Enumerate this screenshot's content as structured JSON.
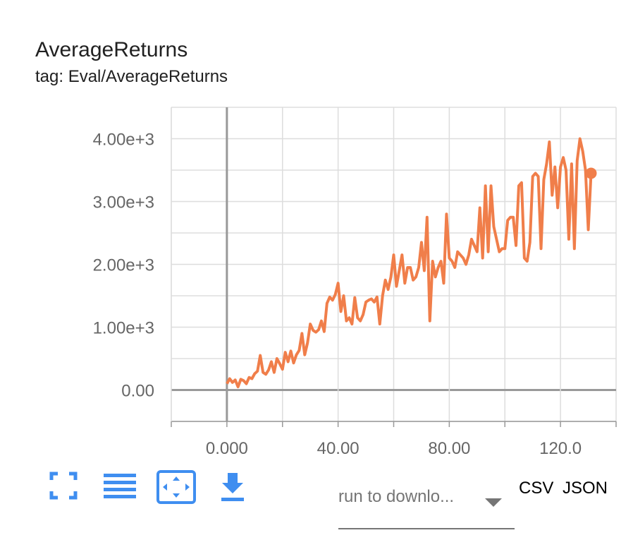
{
  "chart_data": {
    "type": "line",
    "title": "AverageReturns",
    "subtitle": "tag: Eval/AverageReturns",
    "x": [
      0,
      1,
      2,
      3,
      4,
      5,
      6,
      7,
      8,
      9,
      10,
      11,
      12,
      13,
      14,
      15,
      16,
      17,
      18,
      19,
      20,
      21,
      22,
      23,
      24,
      25,
      26,
      27,
      28,
      29,
      30,
      31,
      32,
      33,
      34,
      35,
      36,
      37,
      38,
      39,
      40,
      41,
      42,
      43,
      44,
      45,
      46,
      47,
      48,
      49,
      50,
      51,
      52,
      53,
      54,
      55,
      56,
      57,
      58,
      59,
      60,
      61,
      62,
      63,
      64,
      65,
      66,
      67,
      68,
      69,
      70,
      71,
      72,
      73,
      74,
      75,
      76,
      77,
      78,
      79,
      80,
      81,
      82,
      83,
      84,
      85,
      86,
      87,
      88,
      89,
      90,
      91,
      92,
      93,
      94,
      95,
      96,
      97,
      98,
      99,
      100,
      101,
      102,
      103,
      104,
      105,
      106,
      107,
      108,
      109,
      110,
      111,
      112,
      113,
      114,
      115,
      116,
      117,
      118,
      119,
      120,
      121,
      122,
      123,
      124,
      125,
      126,
      127,
      128,
      129,
      130,
      131
    ],
    "values": [
      100,
      180,
      120,
      160,
      50,
      170,
      150,
      100,
      200,
      180,
      260,
      300,
      550,
      280,
      250,
      320,
      450,
      280,
      500,
      420,
      330,
      600,
      450,
      620,
      430,
      560,
      630,
      900,
      560,
      750,
      1050,
      950,
      920,
      960,
      1100,
      930,
      1380,
      1480,
      1430,
      1520,
      1700,
      1250,
      1500,
      1100,
      1150,
      1050,
      1470,
      1150,
      1100,
      1200,
      1400,
      1430,
      1450,
      1400,
      1480,
      1050,
      1500,
      1750,
      1600,
      1800,
      2150,
      1650,
      1900,
      2150,
      1700,
      1950,
      1950,
      1750,
      1800,
      1950,
      2350,
      1900,
      2750,
      1100,
      2050,
      1800,
      1950,
      2050,
      1700,
      2800,
      2100,
      2050,
      1950,
      2200,
      2150,
      2100,
      2000,
      2150,
      2400,
      2300,
      2200,
      2900,
      2100,
      3250,
      2200,
      3250,
      2600,
      2400,
      2200,
      2250,
      2250,
      2700,
      2750,
      2750,
      2300,
      3250,
      3300,
      2100,
      2050,
      2350,
      3400,
      3450,
      3400,
      2250,
      3350,
      3600,
      3950,
      3100,
      3550,
      2900,
      3550,
      3700,
      3500,
      2400,
      3600,
      2250,
      3650,
      4000,
      3800,
      3500,
      2550,
      3450
    ],
    "color": "#f07e4a",
    "xlim": [
      -20,
      140
    ],
    "xticks": [
      {
        "value": 0,
        "label": "0.000"
      },
      {
        "value": 40,
        "label": "40.00"
      },
      {
        "value": 80,
        "label": "80.00"
      },
      {
        "value": 120,
        "label": "120.0"
      }
    ],
    "xminor": [
      -20,
      20,
      60,
      100,
      140
    ],
    "ylim": [
      -500,
      4500
    ],
    "yticks": [
      {
        "value": 0,
        "label": "0.00"
      },
      {
        "value": 1000,
        "label": "1.00e+3"
      },
      {
        "value": 2000,
        "label": "2.00e+3"
      },
      {
        "value": 3000,
        "label": "3.00e+3"
      },
      {
        "value": 4000,
        "label": "4.00e+3"
      }
    ],
    "yminor": [
      -500,
      500,
      1500,
      2500,
      3500,
      4500
    ],
    "grid": true
  },
  "toolbar": {
    "run_select": "run to downlo...",
    "csv": "CSV",
    "json": "JSON"
  }
}
